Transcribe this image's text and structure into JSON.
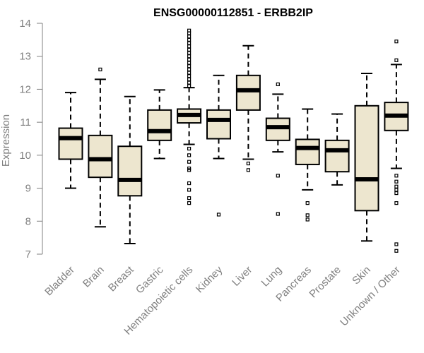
{
  "chart_data": {
    "type": "boxplot",
    "title": "ENSG00000112851 - ERBB2IP",
    "xlabel": "",
    "ylabel": "Expression",
    "ylim": [
      7,
      14
    ],
    "yticks": [
      7,
      8,
      9,
      10,
      11,
      12,
      13,
      14
    ],
    "grid": false,
    "box_color": "#ede6cf",
    "categories": [
      "Bladder",
      "Brain",
      "Breast",
      "Gastric",
      "Hematopoietic cells",
      "Kidney",
      "Liver",
      "Lung",
      "Pancreas",
      "Prostate",
      "Skin",
      "Unknown / Other"
    ],
    "boxes": [
      {
        "name": "Bladder",
        "whisker_low": 9.0,
        "q1": 9.88,
        "median": 10.52,
        "q3": 10.82,
        "whisker_high": 11.9,
        "outliers": []
      },
      {
        "name": "Brain",
        "whisker_low": 7.83,
        "q1": 9.33,
        "median": 9.88,
        "q3": 10.6,
        "whisker_high": 12.3,
        "outliers": [
          12.6
        ]
      },
      {
        "name": "Breast",
        "whisker_low": 7.32,
        "q1": 8.77,
        "median": 9.25,
        "q3": 10.27,
        "whisker_high": 11.78,
        "outliers": []
      },
      {
        "name": "Gastric",
        "whisker_low": 9.9,
        "q1": 10.45,
        "median": 10.73,
        "q3": 11.37,
        "whisker_high": 11.98,
        "outliers": []
      },
      {
        "name": "Hematopoietic cells",
        "whisker_low": 10.33,
        "q1": 10.98,
        "median": 11.22,
        "q3": 11.4,
        "whisker_high": 12.05,
        "outliers": [
          12.1,
          12.2,
          12.3,
          12.4,
          12.5,
          12.6,
          12.7,
          12.8,
          12.9,
          13.0,
          13.1,
          13.2,
          13.3,
          13.4,
          13.5,
          13.6,
          13.7,
          13.78,
          10.2,
          10.0,
          9.8,
          9.6,
          9.55,
          9.15,
          8.95,
          8.7,
          8.55
        ]
      },
      {
        "name": "Kidney",
        "whisker_low": 9.9,
        "q1": 10.5,
        "median": 11.07,
        "q3": 11.37,
        "whisker_high": 12.42,
        "outliers": [
          8.2
        ]
      },
      {
        "name": "Liver",
        "whisker_low": 9.88,
        "q1": 11.37,
        "median": 11.97,
        "q3": 12.42,
        "whisker_high": 13.32,
        "outliers": [
          9.75,
          9.55
        ]
      },
      {
        "name": "Lung",
        "whisker_low": 10.1,
        "q1": 10.45,
        "median": 10.85,
        "q3": 11.12,
        "whisker_high": 11.85,
        "outliers": [
          12.15,
          9.38,
          8.22
        ]
      },
      {
        "name": "Pancreas",
        "whisker_low": 8.95,
        "q1": 9.72,
        "median": 10.22,
        "q3": 10.48,
        "whisker_high": 11.4,
        "outliers": [
          8.55,
          8.18,
          8.05
        ]
      },
      {
        "name": "Prostate",
        "whisker_low": 9.1,
        "q1": 9.5,
        "median": 10.15,
        "q3": 10.45,
        "whisker_high": 11.25,
        "outliers": []
      },
      {
        "name": "Skin",
        "whisker_low": 7.4,
        "q1": 8.32,
        "median": 9.27,
        "q3": 11.5,
        "whisker_high": 12.48,
        "outliers": []
      },
      {
        "name": "Unknown / Other",
        "whisker_low": 9.6,
        "q1": 10.75,
        "median": 11.2,
        "q3": 11.6,
        "whisker_high": 12.75,
        "outliers": [
          13.45,
          12.88,
          9.38,
          9.2,
          9.05,
          8.95,
          8.85,
          8.55,
          7.3,
          7.1
        ]
      }
    ]
  }
}
